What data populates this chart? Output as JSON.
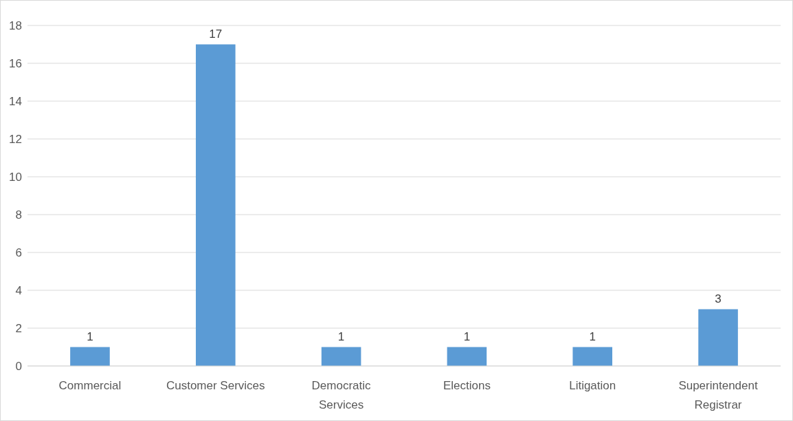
{
  "chart_data": {
    "type": "bar",
    "categories": [
      "Commercial",
      "Customer Services",
      "Democratic Services",
      "Elections",
      "Litigation",
      "Superintendent Registrar"
    ],
    "values": [
      1,
      17,
      1,
      1,
      1,
      3
    ],
    "color": "#5b9bd5",
    "ylim": [
      0,
      18
    ],
    "yticks": [
      0,
      2,
      4,
      6,
      8,
      10,
      12,
      14,
      16,
      18
    ],
    "grid": "y",
    "data_labels": true
  }
}
